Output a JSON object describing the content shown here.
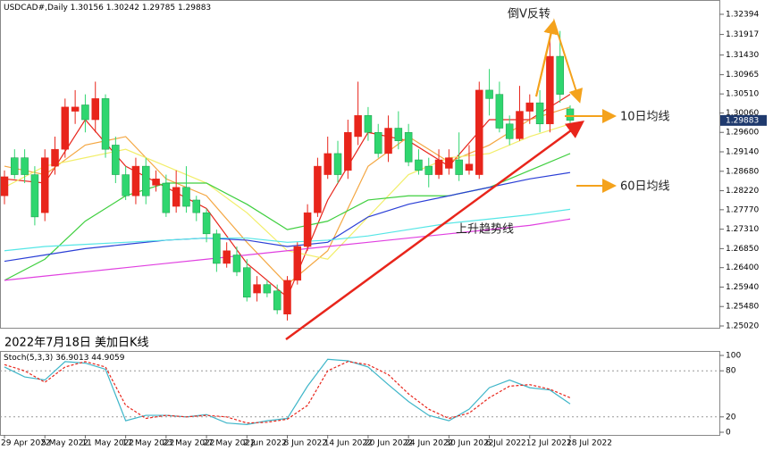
{
  "chart_data": [
    {
      "type": "candlestick",
      "title": "USDCAD#,Daily",
      "quote": [
        1.30156,
        1.30242,
        1.29785,
        1.29883
      ],
      "categories": [
        "29 Apr 2022",
        null,
        null,
        null,
        "5 May 2022",
        null,
        null,
        null,
        "11 May 2022",
        null,
        null,
        null,
        "17 May 2022",
        null,
        null,
        null,
        "23 May 2022",
        null,
        null,
        null,
        "27 May 2022",
        null,
        null,
        null,
        "2 Jun 2022",
        null,
        null,
        null,
        "8 Jun 2022",
        null,
        null,
        null,
        "14 Jun 2022",
        null,
        null,
        null,
        "20 Jun 2022",
        null,
        null,
        null,
        "24 Jun 2022",
        null,
        null,
        null,
        "30 Jun 2022",
        null,
        null,
        null,
        "6 Jul 2022",
        null,
        null,
        null,
        "12 Jul 2022",
        null,
        null,
        null,
        "18 Jul 2022"
      ],
      "open": [
        1.281,
        1.29,
        1.29,
        1.286,
        1.277,
        1.288,
        1.292,
        1.301,
        1.3025,
        1.299,
        1.304,
        1.293,
        1.286,
        1.281,
        1.288,
        1.2835,
        1.284,
        1.2785,
        1.283,
        1.28,
        1.277,
        1.272,
        1.265,
        1.267,
        1.264,
        1.258,
        1.26,
        1.2585,
        1.253,
        1.261,
        1.269,
        1.277,
        1.286,
        1.291,
        1.287,
        1.295,
        1.3,
        1.296,
        1.291,
        1.297,
        1.296,
        1.2895,
        1.288,
        1.286,
        1.2875,
        1.2895,
        1.287,
        1.286,
        1.306,
        1.305,
        1.298,
        1.2945,
        1.301,
        1.303,
        1.298,
        1.314,
        1.30156
      ],
      "high": [
        1.287,
        1.292,
        1.292,
        1.288,
        1.292,
        1.295,
        1.304,
        1.306,
        1.305,
        1.308,
        1.305,
        1.295,
        1.288,
        1.29,
        1.29,
        1.287,
        1.286,
        1.287,
        1.288,
        1.281,
        1.278,
        1.273,
        1.27,
        1.269,
        1.266,
        1.262,
        1.261,
        1.26,
        1.262,
        1.27,
        1.279,
        1.29,
        1.295,
        1.294,
        1.299,
        1.308,
        1.302,
        1.298,
        1.3,
        1.301,
        1.298,
        1.292,
        1.29,
        1.292,
        1.292,
        1.296,
        1.293,
        1.308,
        1.311,
        1.308,
        1.3,
        1.307,
        1.305,
        1.306,
        1.318,
        1.32,
        1.30242
      ],
      "low": [
        1.279,
        1.285,
        1.284,
        1.274,
        1.275,
        1.286,
        1.29,
        1.298,
        1.296,
        1.296,
        1.29,
        1.284,
        1.28,
        1.279,
        1.279,
        1.282,
        1.276,
        1.277,
        1.277,
        1.275,
        1.27,
        1.263,
        1.264,
        1.262,
        1.256,
        1.256,
        1.257,
        1.253,
        1.2515,
        1.26,
        1.268,
        1.276,
        1.285,
        1.284,
        1.285,
        1.293,
        1.294,
        1.29,
        1.289,
        1.292,
        1.288,
        1.286,
        1.283,
        1.285,
        1.286,
        1.2845,
        1.286,
        1.285,
        1.3,
        1.296,
        1.293,
        1.294,
        1.298,
        1.296,
        1.296,
        1.303,
        1.29785
      ],
      "close": [
        1.2855,
        1.286,
        1.286,
        1.276,
        1.29,
        1.292,
        1.302,
        1.302,
        1.299,
        1.304,
        1.292,
        1.286,
        1.281,
        1.288,
        1.281,
        1.285,
        1.277,
        1.283,
        1.2785,
        1.277,
        1.272,
        1.265,
        1.268,
        1.263,
        1.257,
        1.26,
        1.258,
        1.254,
        1.261,
        1.269,
        1.277,
        1.288,
        1.291,
        1.286,
        1.296,
        1.3,
        1.296,
        1.291,
        1.297,
        1.294,
        1.289,
        1.287,
        1.286,
        1.2895,
        1.29,
        1.286,
        1.2885,
        1.306,
        1.304,
        1.297,
        1.2945,
        1.301,
        1.303,
        1.298,
        1.314,
        1.305,
        1.29883
      ],
      "up_color": "#e8251b",
      "down_color": "#2fd66f",
      "lines": [
        {
          "color": "#e8251b",
          "x": [
            0,
            4,
            8,
            12,
            16,
            20,
            24,
            28,
            32,
            36,
            40,
            44,
            48,
            52,
            56
          ],
          "values": [
            1.285,
            1.284,
            1.299,
            1.288,
            1.283,
            1.278,
            1.265,
            1.257,
            1.28,
            1.296,
            1.294,
            1.288,
            1.299,
            1.299,
            1.305
          ]
        },
        {
          "color": "#f4a742",
          "x": [
            0,
            4,
            8,
            12,
            16,
            20,
            24,
            28,
            32,
            36,
            40,
            44,
            48,
            52,
            56
          ],
          "values": [
            1.288,
            1.286,
            1.293,
            1.295,
            1.285,
            1.281,
            1.27,
            1.26,
            1.268,
            1.288,
            1.295,
            1.289,
            1.293,
            1.299,
            1.302
          ]
        },
        {
          "color": "#f2ee6a",
          "x": [
            0,
            4,
            8,
            12,
            16,
            20,
            24,
            28,
            32,
            36,
            40,
            44,
            48,
            52,
            56
          ],
          "values": [
            1.283,
            1.288,
            1.29,
            1.292,
            1.288,
            1.284,
            1.277,
            1.268,
            1.266,
            1.276,
            1.286,
            1.29,
            1.291,
            1.295,
            1.298
          ]
        },
        {
          "color": "#3fcf3f",
          "x": [
            0,
            4,
            8,
            12,
            16,
            20,
            24,
            28,
            32,
            36,
            40,
            44,
            48,
            52,
            56
          ],
          "values": [
            1.261,
            1.266,
            1.275,
            1.281,
            1.284,
            1.284,
            1.279,
            1.273,
            1.275,
            1.28,
            1.281,
            1.281,
            1.283,
            1.287,
            1.291
          ]
        },
        {
          "color": "#2b3fd6",
          "x": [
            0,
            4,
            8,
            12,
            16,
            20,
            24,
            28,
            32,
            36,
            40,
            44,
            48,
            52,
            56
          ],
          "values": [
            1.2655,
            1.267,
            1.2685,
            1.2695,
            1.2705,
            1.271,
            1.2705,
            1.269,
            1.27,
            1.276,
            1.279,
            1.281,
            1.283,
            1.285,
            1.2865
          ]
        },
        {
          "color": "#55e6e6",
          "x": [
            0,
            4,
            8,
            12,
            16,
            20,
            24,
            28,
            32,
            36,
            40,
            44,
            48,
            52,
            56
          ],
          "values": [
            1.268,
            1.269,
            1.2695,
            1.27,
            1.2705,
            1.271,
            1.271,
            1.27,
            1.2705,
            1.2715,
            1.273,
            1.2745,
            1.2755,
            1.2765,
            1.2778
          ]
        },
        {
          "color": "#e040e0",
          "x": [
            0,
            4,
            8,
            12,
            16,
            20,
            24,
            28,
            32,
            36,
            40,
            44,
            48,
            52,
            56
          ],
          "values": [
            1.261,
            1.262,
            1.263,
            1.264,
            1.265,
            1.266,
            1.267,
            1.268,
            1.269,
            1.27,
            1.271,
            1.272,
            1.273,
            1.274,
            1.2755
          ]
        }
      ],
      "ylim": [
        1.2502,
        1.32394
      ],
      "yticks": [
        {
          "value": 1.2502,
          "label": "1.25020"
        },
        {
          "value": 1.2548,
          "label": "1.25480"
        },
        {
          "value": 1.2594,
          "label": "1.25940"
        },
        {
          "value": 1.264,
          "label": "1.26400"
        },
        {
          "value": 1.2685,
          "label": "1.26850"
        },
        {
          "value": 1.2731,
          "label": "1.27310"
        },
        {
          "value": 1.2777,
          "label": "1.27770"
        },
        {
          "value": 1.2822,
          "label": "1.28220"
        },
        {
          "value": 1.2868,
          "label": "1.28680"
        },
        {
          "value": 1.2914,
          "label": "1.29140"
        },
        {
          "value": 1.296,
          "label": "1.29600"
        },
        {
          "value": 1.3006,
          "label": "1.30060"
        },
        {
          "value": 1.3051,
          "label": "1.30510"
        },
        1.30965,
        {
          "value": 1.3143,
          "label": "1.31430"
        },
        1.31917,
        1.32394
      ],
      "current_price": 1.29883,
      "annotations": [
        "倒V反转",
        "10日均线",
        "60日均线",
        "上升趋势线"
      ],
      "caption": "2022年7月18日 美加日K线"
    },
    {
      "type": "line",
      "title": "Stoch(5,3,3)",
      "readout": [
        36.9013,
        44.9059
      ],
      "series": [
        {
          "color": "#3fb6c9",
          "dash": false,
          "x": [
            0,
            2,
            4,
            6,
            8,
            10,
            12,
            14,
            16,
            18,
            20,
            22,
            24,
            26,
            28,
            30,
            32,
            34,
            36,
            38,
            40,
            42,
            44,
            46,
            48,
            50,
            52,
            54,
            56
          ],
          "values": [
            85,
            72,
            68,
            92,
            90,
            82,
            15,
            22,
            22,
            20,
            23,
            12,
            10,
            15,
            18,
            60,
            95,
            93,
            85,
            62,
            40,
            22,
            15,
            30,
            58,
            68,
            58,
            55,
            36.9013
          ]
        },
        {
          "color": "#e8251b",
          "dash": true,
          "x": [
            0,
            2,
            4,
            6,
            8,
            10,
            12,
            14,
            16,
            18,
            20,
            22,
            24,
            26,
            28,
            30,
            32,
            34,
            36,
            38,
            40,
            42,
            44,
            46,
            48,
            50,
            52,
            54,
            56
          ],
          "values": [
            88,
            80,
            65,
            85,
            92,
            85,
            35,
            18,
            22,
            20,
            22,
            20,
            12,
            13,
            17,
            35,
            80,
            92,
            88,
            75,
            50,
            30,
            18,
            25,
            45,
            60,
            62,
            56,
            44.9059
          ]
        }
      ],
      "ylim": [
        0,
        100
      ],
      "yticks": [
        0,
        20,
        80,
        100
      ]
    }
  ]
}
